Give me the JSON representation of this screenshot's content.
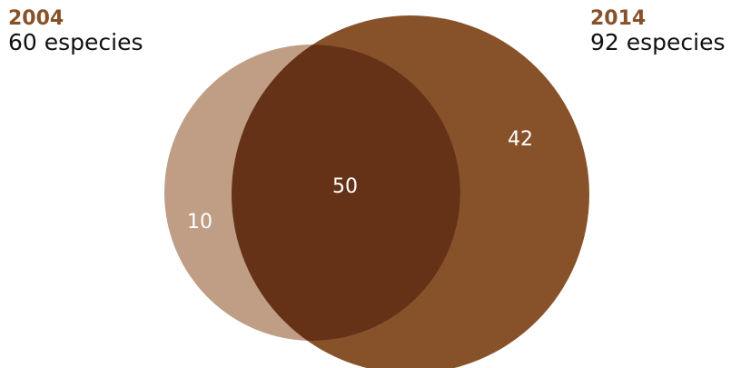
{
  "sets": [
    {
      "year": "2004",
      "count_label": "60 especies",
      "color": "#bf9e85",
      "year_color": "#87522a"
    },
    {
      "year": "2014",
      "count_label": "92 especies",
      "color": "#87522a",
      "year_color": "#87522a"
    }
  ],
  "intersection_color": "#663217",
  "regions": {
    "only_2004": "10",
    "both": "50",
    "only_2014": "42"
  }
}
